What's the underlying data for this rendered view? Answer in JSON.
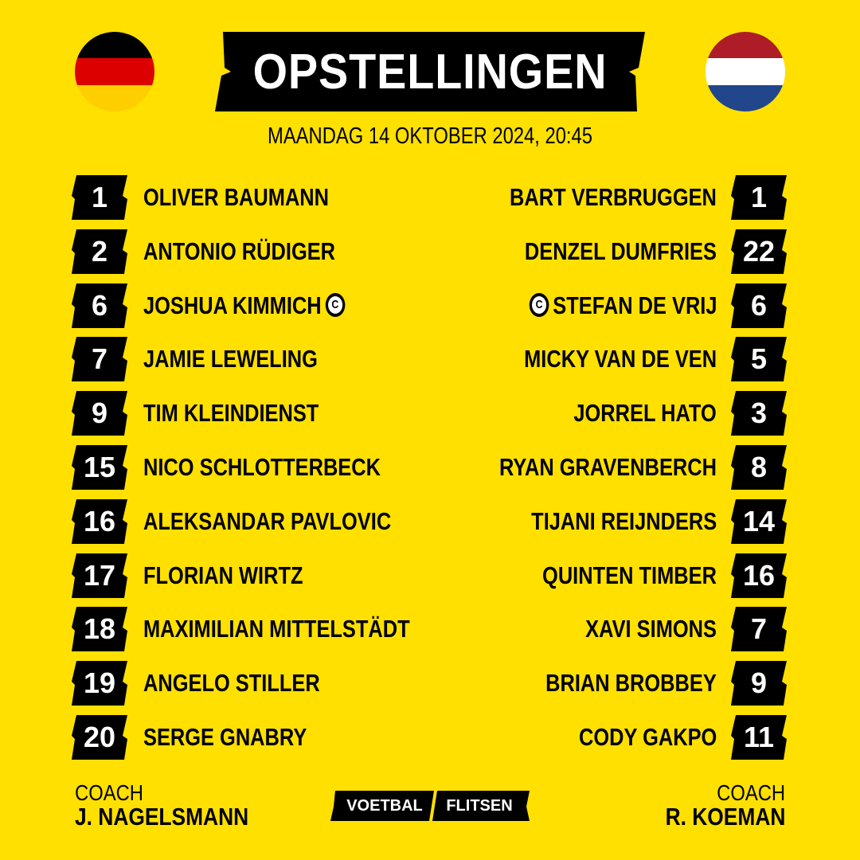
{
  "title": "OPSTELLINGEN",
  "subtitle": "MAANDAG 14 OKTOBER 2024, 20:45",
  "colors": {
    "background": "#FFE000",
    "banner": "#000000",
    "germany": [
      "#000000",
      "#DD0000",
      "#FFCE00"
    ],
    "netherlands": [
      "#AE1C28",
      "#FFFFFF",
      "#21468B"
    ]
  },
  "captain_marker": "C",
  "home": {
    "flag_icon": "germany-flag-icon",
    "players": [
      {
        "number": "1",
        "name": "OLIVER BAUMANN"
      },
      {
        "number": "2",
        "name": "ANTONIO RÜDIGER"
      },
      {
        "number": "6",
        "name": "JOSHUA KIMMICH",
        "captain": true
      },
      {
        "number": "7",
        "name": "JAMIE LEWELING"
      },
      {
        "number": "9",
        "name": "TIM KLEINDIENST"
      },
      {
        "number": "15",
        "name": "NICO SCHLOTTERBECK"
      },
      {
        "number": "16",
        "name": "ALEKSANDAR PAVLOVIC"
      },
      {
        "number": "17",
        "name": "FLORIAN WIRTZ"
      },
      {
        "number": "18",
        "name": "MAXIMILIAN MITTELSTÄDT"
      },
      {
        "number": "19",
        "name": "ANGELO STILLER"
      },
      {
        "number": "20",
        "name": "SERGE GNABRY"
      }
    ],
    "coach_label": "COACH",
    "coach_name": "J. NAGELSMANN"
  },
  "away": {
    "flag_icon": "netherlands-flag-icon",
    "players": [
      {
        "number": "1",
        "name": "BART VERBRUGGEN"
      },
      {
        "number": "22",
        "name": "DENZEL DUMFRIES"
      },
      {
        "number": "6",
        "name": "STEFAN DE VRIJ",
        "captain": true
      },
      {
        "number": "5",
        "name": "MICKY VAN DE VEN"
      },
      {
        "number": "3",
        "name": "JORREL HATO"
      },
      {
        "number": "8",
        "name": "RYAN GRAVENBERCH"
      },
      {
        "number": "14",
        "name": "TIJANI REIJNDERS"
      },
      {
        "number": "16",
        "name": "QUINTEN TIMBER"
      },
      {
        "number": "7",
        "name": "XAVI SIMONS"
      },
      {
        "number": "9",
        "name": "BRIAN BROBBEY"
      },
      {
        "number": "11",
        "name": "CODY GAKPO"
      }
    ],
    "coach_label": "COACH",
    "coach_name": "R. KOEMAN"
  },
  "logo": {
    "word1": "VOETBAL",
    "word2": "FLITSEN"
  }
}
